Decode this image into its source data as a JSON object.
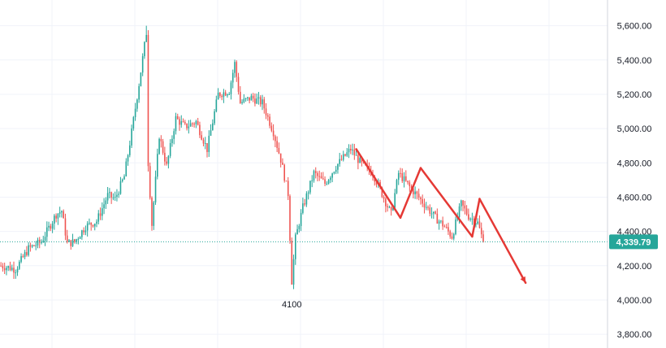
{
  "chart_data": {
    "type": "candlestick",
    "y_axis": {
      "position": "right",
      "ylim": [
        3720,
        5750
      ],
      "ticks": [
        "5,600.00",
        "5,400.00",
        "5,200.00",
        "5,000.00",
        "4,800.00",
        "4,600.00",
        "4,400.00",
        "4,200.00",
        "4,000.00",
        "3,800.00"
      ],
      "tick_values": [
        5600,
        5400,
        5200,
        5000,
        4800,
        4600,
        4400,
        4200,
        4000,
        3800
      ]
    },
    "x_axis": {
      "labels_visible": false,
      "bars": 330
    },
    "grid": true,
    "last_price": {
      "value": 4339.79,
      "label": "4,339.79",
      "color": "#26a69a"
    },
    "colors": {
      "up": "#26a69a",
      "down": "#ef5350",
      "trendline": "#e53935",
      "grid": "#f0f3fa"
    },
    "low_annotation": {
      "label": "4100",
      "bar": 158,
      "value": 4100
    },
    "price_path": [
      [
        0,
        4200
      ],
      [
        8,
        4180
      ],
      [
        15,
        4300
      ],
      [
        22,
        4340
      ],
      [
        30,
        4500
      ],
      [
        33,
        4520
      ],
      [
        36,
        4330
      ],
      [
        40,
        4340
      ],
      [
        46,
        4430
      ],
      [
        52,
        4460
      ],
      [
        58,
        4610
      ],
      [
        62,
        4590
      ],
      [
        67,
        4720
      ],
      [
        71,
        4980
      ],
      [
        75,
        5260
      ],
      [
        79,
        5560
      ],
      [
        80,
        4800
      ],
      [
        82,
        4440
      ],
      [
        86,
        4960
      ],
      [
        90,
        4780
      ],
      [
        95,
        5060
      ],
      [
        100,
        5010
      ],
      [
        106,
        5040
      ],
      [
        112,
        4880
      ],
      [
        118,
        5200
      ],
      [
        124,
        5220
      ],
      [
        127,
        5380
      ],
      [
        130,
        5150
      ],
      [
        136,
        5180
      ],
      [
        142,
        5150
      ],
      [
        148,
        4980
      ],
      [
        152,
        4820
      ],
      [
        156,
        4620
      ],
      [
        158,
        4110
      ],
      [
        160,
        4360
      ],
      [
        164,
        4540
      ],
      [
        170,
        4740
      ],
      [
        176,
        4680
      ],
      [
        182,
        4780
      ],
      [
        190,
        4880
      ],
      [
        196,
        4790
      ],
      [
        202,
        4740
      ],
      [
        212,
        4500
      ],
      [
        216,
        4740
      ],
      [
        222,
        4660
      ],
      [
        230,
        4560
      ],
      [
        236,
        4480
      ],
      [
        240,
        4440
      ],
      [
        245,
        4370
      ],
      [
        250,
        4560
      ],
      [
        254,
        4490
      ],
      [
        259,
        4450
      ],
      [
        262,
        4339.79
      ]
    ],
    "trendlines": [
      [
        [
          193,
          4880
        ],
        [
          217,
          4480
        ]
      ],
      [
        [
          217,
          4480
        ],
        [
          228,
          4770
        ]
      ],
      [
        [
          228,
          4770
        ],
        [
          256,
          4370
        ]
      ],
      [
        [
          256,
          4370
        ],
        [
          260,
          4590
        ]
      ],
      [
        [
          260,
          4590
        ],
        [
          285,
          4100
        ]
      ]
    ]
  }
}
